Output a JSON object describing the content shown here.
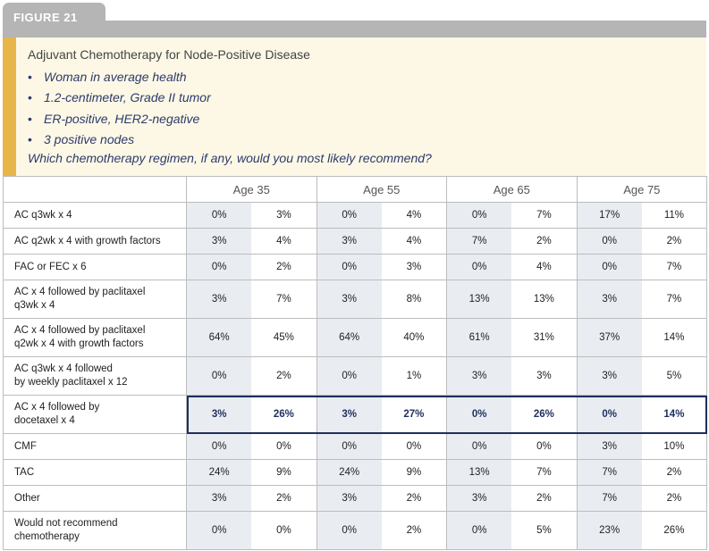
{
  "figure_label": "FIGURE 21",
  "question": {
    "title": "Adjuvant Chemotherapy for Node-Positive Disease",
    "bullets": [
      "Woman in average health",
      "1.2-centimeter, Grade II tumor",
      "ER-positive, HER2-negative",
      "3 positive nodes"
    ],
    "prompt": "Which chemotherapy regimen, if any, would you most likely recommend?"
  },
  "table": {
    "age_groups": [
      "Age 35",
      "Age 55",
      "Age 65",
      "Age 75"
    ],
    "rows": [
      {
        "label": [
          "AC q3wk x 4"
        ],
        "height": "s",
        "values": [
          "0%",
          "3%",
          "0%",
          "4%",
          "0%",
          "7%",
          "17%",
          "11%"
        ]
      },
      {
        "label": [
          "AC q2wk x 4 with growth factors"
        ],
        "height": "s",
        "values": [
          "3%",
          "4%",
          "3%",
          "4%",
          "7%",
          "2%",
          "0%",
          "2%"
        ]
      },
      {
        "label": [
          "FAC or FEC x 6"
        ],
        "height": "s",
        "values": [
          "0%",
          "2%",
          "0%",
          "3%",
          "0%",
          "4%",
          "0%",
          "7%"
        ]
      },
      {
        "label": [
          "AC x 4 followed by paclitaxel",
          "q3wk x 4"
        ],
        "height": "t",
        "values": [
          "3%",
          "7%",
          "3%",
          "8%",
          "13%",
          "13%",
          "3%",
          "7%"
        ]
      },
      {
        "label": [
          "AC x 4 followed by paclitaxel",
          "q2wk x 4 with growth factors"
        ],
        "height": "t",
        "values": [
          "64%",
          "45%",
          "64%",
          "40%",
          "61%",
          "31%",
          "37%",
          "14%"
        ]
      },
      {
        "label": [
          "AC q3wk x 4 followed",
          "by weekly paclitaxel x 12"
        ],
        "height": "t",
        "values": [
          "0%",
          "2%",
          "0%",
          "1%",
          "3%",
          "3%",
          "3%",
          "5%"
        ]
      },
      {
        "label": [
          "AC x 4 followed by",
          "docetaxel x 4"
        ],
        "height": "t",
        "highlight": true,
        "values": [
          "3%",
          "26%",
          "3%",
          "27%",
          "0%",
          "26%",
          "0%",
          "14%"
        ]
      },
      {
        "label": [
          "CMF"
        ],
        "height": "s",
        "values": [
          "0%",
          "0%",
          "0%",
          "0%",
          "0%",
          "0%",
          "3%",
          "10%"
        ]
      },
      {
        "label": [
          "TAC"
        ],
        "height": "s",
        "values": [
          "24%",
          "9%",
          "24%",
          "9%",
          "13%",
          "7%",
          "7%",
          "2%"
        ]
      },
      {
        "label": [
          "Other"
        ],
        "height": "s",
        "values": [
          "3%",
          "2%",
          "3%",
          "2%",
          "3%",
          "2%",
          "7%",
          "2%"
        ]
      },
      {
        "label": [
          "Would not recommend",
          "chemotherapy"
        ],
        "height": "t",
        "values": [
          "0%",
          "0%",
          "0%",
          "2%",
          "0%",
          "5%",
          "23%",
          "26%"
        ]
      }
    ]
  },
  "colors": {
    "tab_gray": "#b5b5b5",
    "question_bg": "#fcf8e5",
    "accent_bar": "#e7b54a",
    "italic_text": "#2d3a6b",
    "shaded_cell": "#e9edf2",
    "highlight_border": "#1f2f5c"
  }
}
